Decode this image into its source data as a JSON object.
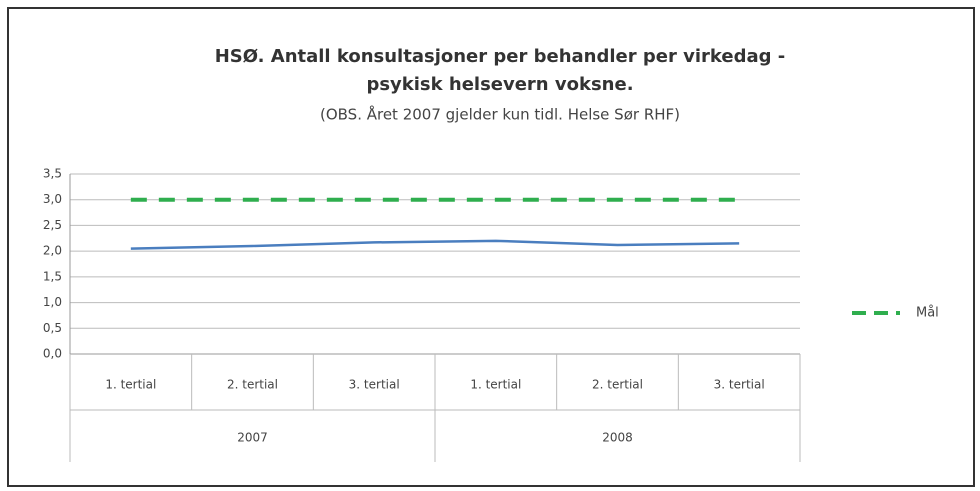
{
  "chart_data": {
    "type": "line",
    "title": [
      "HSØ. Antall konsultasjoner per behandler per virkedag -",
      "psykisk helsevern voksne."
    ],
    "subtitle": "(OBS. Året 2007 gjelder kun tidl. Helse Sør RHF)",
    "categories": [
      "1. tertial",
      "2. tertial",
      "3. tertial",
      "1. tertial",
      "2. tertial",
      "3. tertial"
    ],
    "groups": [
      "2007",
      "2008"
    ],
    "series": [
      {
        "color": "#4a7ebf",
        "dash": false,
        "values": [
          2.05,
          2.1,
          2.17,
          2.2,
          2.12,
          2.15
        ]
      },
      {
        "name": "Mål",
        "color": "#2fae4e",
        "dash": true,
        "values": [
          3.0,
          3.0,
          3.0,
          3.0,
          3.0,
          3.0
        ]
      }
    ],
    "ylim": [
      0,
      3.5
    ],
    "yticks": [
      {
        "value": 0,
        "label": "0,0"
      },
      {
        "value": 0.5,
        "label": "0,5"
      },
      {
        "value": 1,
        "label": "1,0"
      },
      {
        "value": 1.5,
        "label": "1,5"
      },
      {
        "value": 2,
        "label": "2,0"
      },
      {
        "value": 2.5,
        "label": "2,5"
      },
      {
        "value": 3,
        "label": "3,0"
      },
      {
        "value": 3.5,
        "label": "3,5"
      }
    ],
    "grid": true,
    "legend": "right"
  }
}
